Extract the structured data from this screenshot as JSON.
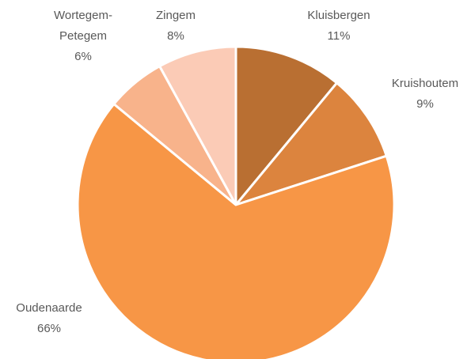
{
  "chart_data": {
    "type": "pie",
    "categories": [
      "Kluisbergen",
      "Kruishoutem",
      "Oudenaarde",
      "Wortegem-Petegem",
      "Zingem"
    ],
    "values": [
      11,
      9,
      66,
      6,
      8
    ],
    "value_labels": [
      "11%",
      "9%",
      "66%",
      "6%",
      "8%"
    ],
    "colors": [
      "#b96f32",
      "#dc843e",
      "#f79646",
      "#f8b38b",
      "#fbcbb6"
    ]
  }
}
